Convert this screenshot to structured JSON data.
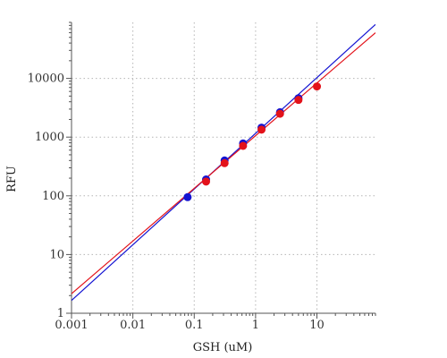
{
  "chart_data": {
    "type": "scatter",
    "xlabel": "GSH (uM)",
    "ylabel": "RFU",
    "x_scale": "log",
    "y_scale": "log",
    "xlim": [
      0.001,
      90
    ],
    "ylim": [
      1,
      90000
    ],
    "x_ticks": [
      0.001,
      0.01,
      0.1,
      1,
      10
    ],
    "x_tick_labels": [
      "0.001",
      "0.01",
      "0.1",
      "1",
      "10"
    ],
    "y_ticks": [
      1,
      10,
      100,
      1000,
      10000
    ],
    "y_tick_labels": [
      "1",
      "10",
      "100",
      "1000",
      "10000"
    ],
    "grid": true,
    "series": [
      {
        "color": "#1414d2",
        "points": [
          {
            "x": 0.078,
            "y": 95
          },
          {
            "x": 0.156,
            "y": 190
          },
          {
            "x": 0.3125,
            "y": 400
          },
          {
            "x": 0.625,
            "y": 780
          },
          {
            "x": 1.25,
            "y": 1450
          },
          {
            "x": 2.5,
            "y": 2650
          },
          {
            "x": 5,
            "y": 4600
          }
        ],
        "fit_line": {
          "x": [
            0.001,
            90
          ],
          "y": [
            1.65,
            83000
          ]
        }
      },
      {
        "color": "#e3121a",
        "points": [
          {
            "x": 0.156,
            "y": 175
          },
          {
            "x": 0.3125,
            "y": 360
          },
          {
            "x": 0.625,
            "y": 710
          },
          {
            "x": 1.25,
            "y": 1340
          },
          {
            "x": 2.5,
            "y": 2500
          },
          {
            "x": 5,
            "y": 4300
          },
          {
            "x": 10,
            "y": 7300
          }
        ],
        "fit_line": {
          "x": [
            0.001,
            90
          ],
          "y": [
            2.15,
            60000
          ]
        }
      }
    ]
  }
}
